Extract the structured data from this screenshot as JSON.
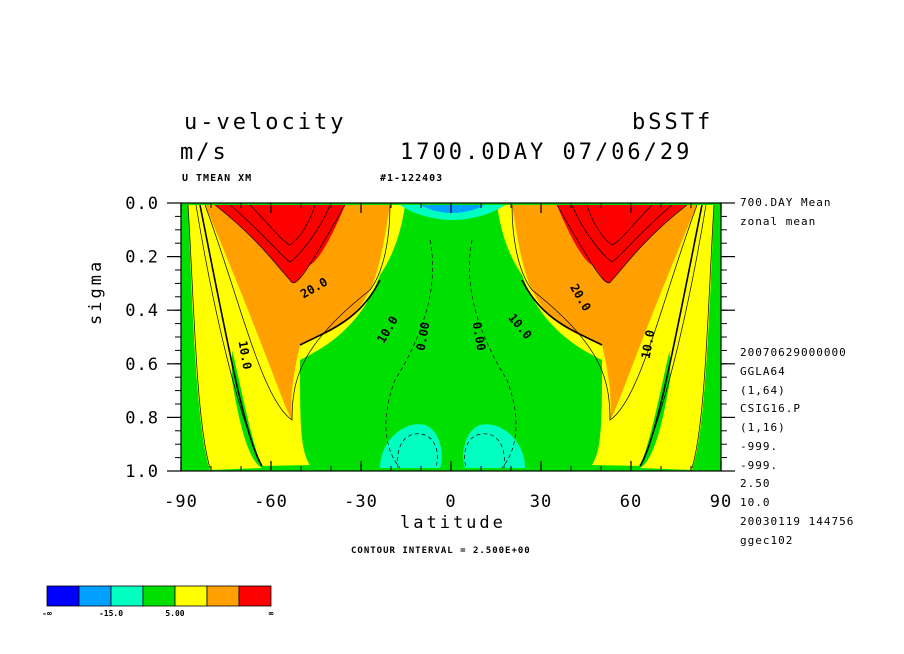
{
  "chart_data": {
    "type": "heatmap",
    "title_left": [
      "u-velocity",
      "m/s"
    ],
    "title_right": [
      "bSSTf",
      "1700.0DAY 07/06/29"
    ],
    "subtitle_left": "U TMEAN XM",
    "subtitle_right": "#1-122403",
    "xlabel": "latitude",
    "ylabel": "sigma",
    "x_ticks": [
      "-90",
      "-60",
      "-30",
      "0",
      "30",
      "60",
      "90"
    ],
    "y_ticks": [
      "0.0",
      "0.2",
      "0.4",
      "0.6",
      "0.8",
      "1.0"
    ],
    "xlim": [
      -90,
      90
    ],
    "ylim": [
      0.0,
      1.0
    ],
    "contour_interval_text": "CONTOUR INTERVAL = 2.500E+00",
    "contour_interval": 2.5,
    "contour_labels": [
      "20.0",
      "10.0",
      "0.00",
      "0.00",
      "10.0",
      "20.0",
      "10.0",
      "10.0"
    ],
    "jets": [
      {
        "lat": -55,
        "sigma": 0.05,
        "max_u": 32.5
      },
      {
        "lat": 55,
        "sigma": 0.05,
        "max_u": 32.5
      }
    ],
    "minima": [
      {
        "lat": 0,
        "sigma": 0.02,
        "min_u": -12.5
      },
      {
        "lat": -15,
        "sigma": 0.92,
        "min_u": -7.5
      },
      {
        "lat": 15,
        "sigma": 0.92,
        "min_u": -7.5
      }
    ],
    "side_info": [
      "700.DAY Mean",
      "zonal mean",
      "20070629000000",
      "GGLA64",
      "(1,64)",
      "CSIG16.P",
      "(1,16)",
      "-999.",
      "-999.",
      "2.50",
      "10.0",
      "20030119 144756",
      "ggec102"
    ],
    "colorbar": {
      "colors": [
        "#0000ff",
        "#00a0ff",
        "#00ffc0",
        "#00e000",
        "#ffff00",
        "#ffa000",
        "#ff0000"
      ],
      "labels": [
        "-∞",
        "-15.0",
        "5.00",
        "∞"
      ]
    }
  }
}
